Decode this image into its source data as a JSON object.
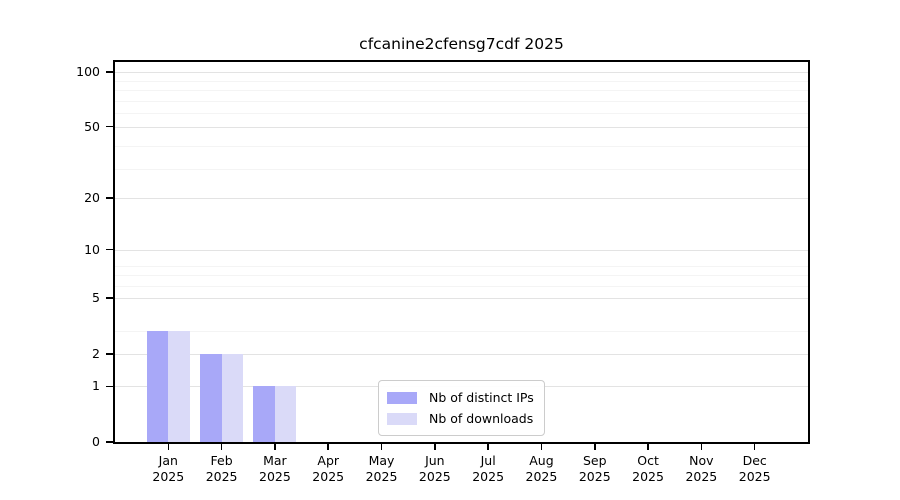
{
  "chart_data": {
    "type": "bar",
    "title": "cfcanine2cfensg7cdf 2025",
    "categories": [
      "Jan",
      "Feb",
      "Mar",
      "Apr",
      "May",
      "Jun",
      "Jul",
      "Aug",
      "Sep",
      "Oct",
      "Nov",
      "Dec"
    ],
    "x_tick_year_line": "2025",
    "series": [
      {
        "name": "Nb of distinct IPs",
        "color": "#a8a8f8",
        "values": [
          3,
          2,
          1,
          0,
          0,
          0,
          0,
          0,
          0,
          0,
          0,
          0
        ]
      },
      {
        "name": "Nb of downloads",
        "color": "#dadaf8",
        "values": [
          3,
          2,
          1,
          0,
          0,
          0,
          0,
          0,
          0,
          0,
          0,
          0
        ]
      }
    ],
    "xlabel": "",
    "ylabel": "",
    "yscale": "log1p",
    "ylim": [
      0,
      113
    ],
    "y_ticks": [
      0,
      1,
      2,
      5,
      10,
      20,
      50,
      100
    ],
    "y_minor_gridlines": [
      3,
      6,
      7,
      8,
      29,
      39,
      59,
      69,
      79,
      89
    ],
    "grid": "on",
    "legend_position": "lower center",
    "colors": {
      "axis": "#000000",
      "major_grid": "#e3e3e3",
      "minor_grid": "#f4f4f4",
      "legend_border": "#cccccc"
    }
  }
}
